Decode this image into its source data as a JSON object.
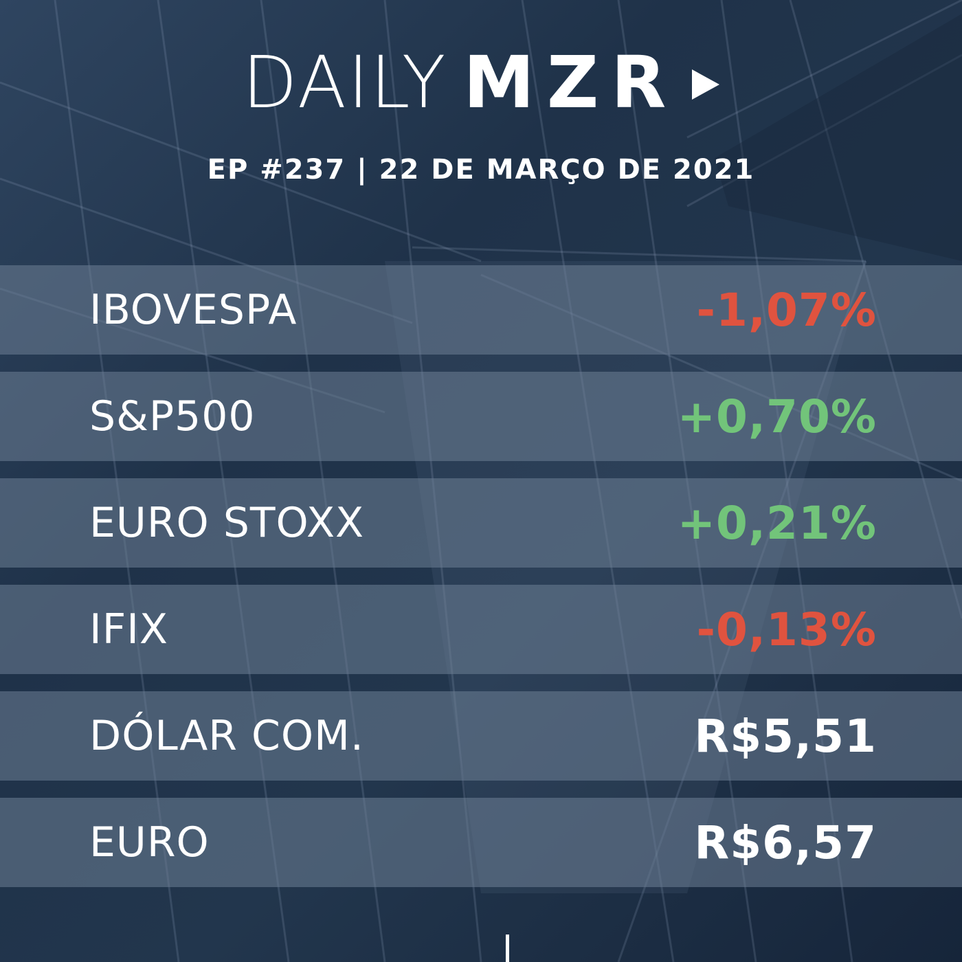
{
  "logo": {
    "light_text": "DAILY",
    "bold_text": "MZR",
    "icon": "play-icon"
  },
  "episode_line": "EP #237 | 22 DE MARÇO DE 2021",
  "colors": {
    "negative": "#e0533f",
    "positive": "#72c47a",
    "neutral": "#ffffff"
  },
  "rows": [
    {
      "label": "IBOVESPA",
      "value": "-1,07%",
      "trend": "negative"
    },
    {
      "label": "S&P500",
      "value": "+0,70%",
      "trend": "positive"
    },
    {
      "label": "EURO STOXX",
      "value": "+0,21%",
      "trend": "positive"
    },
    {
      "label": "IFIX",
      "value": "-0,13%",
      "trend": "negative"
    },
    {
      "label": "DÓLAR COM.",
      "value": "R$5,51",
      "trend": "neutral"
    },
    {
      "label": "EURO",
      "value": "R$6,57",
      "trend": "neutral"
    }
  ]
}
